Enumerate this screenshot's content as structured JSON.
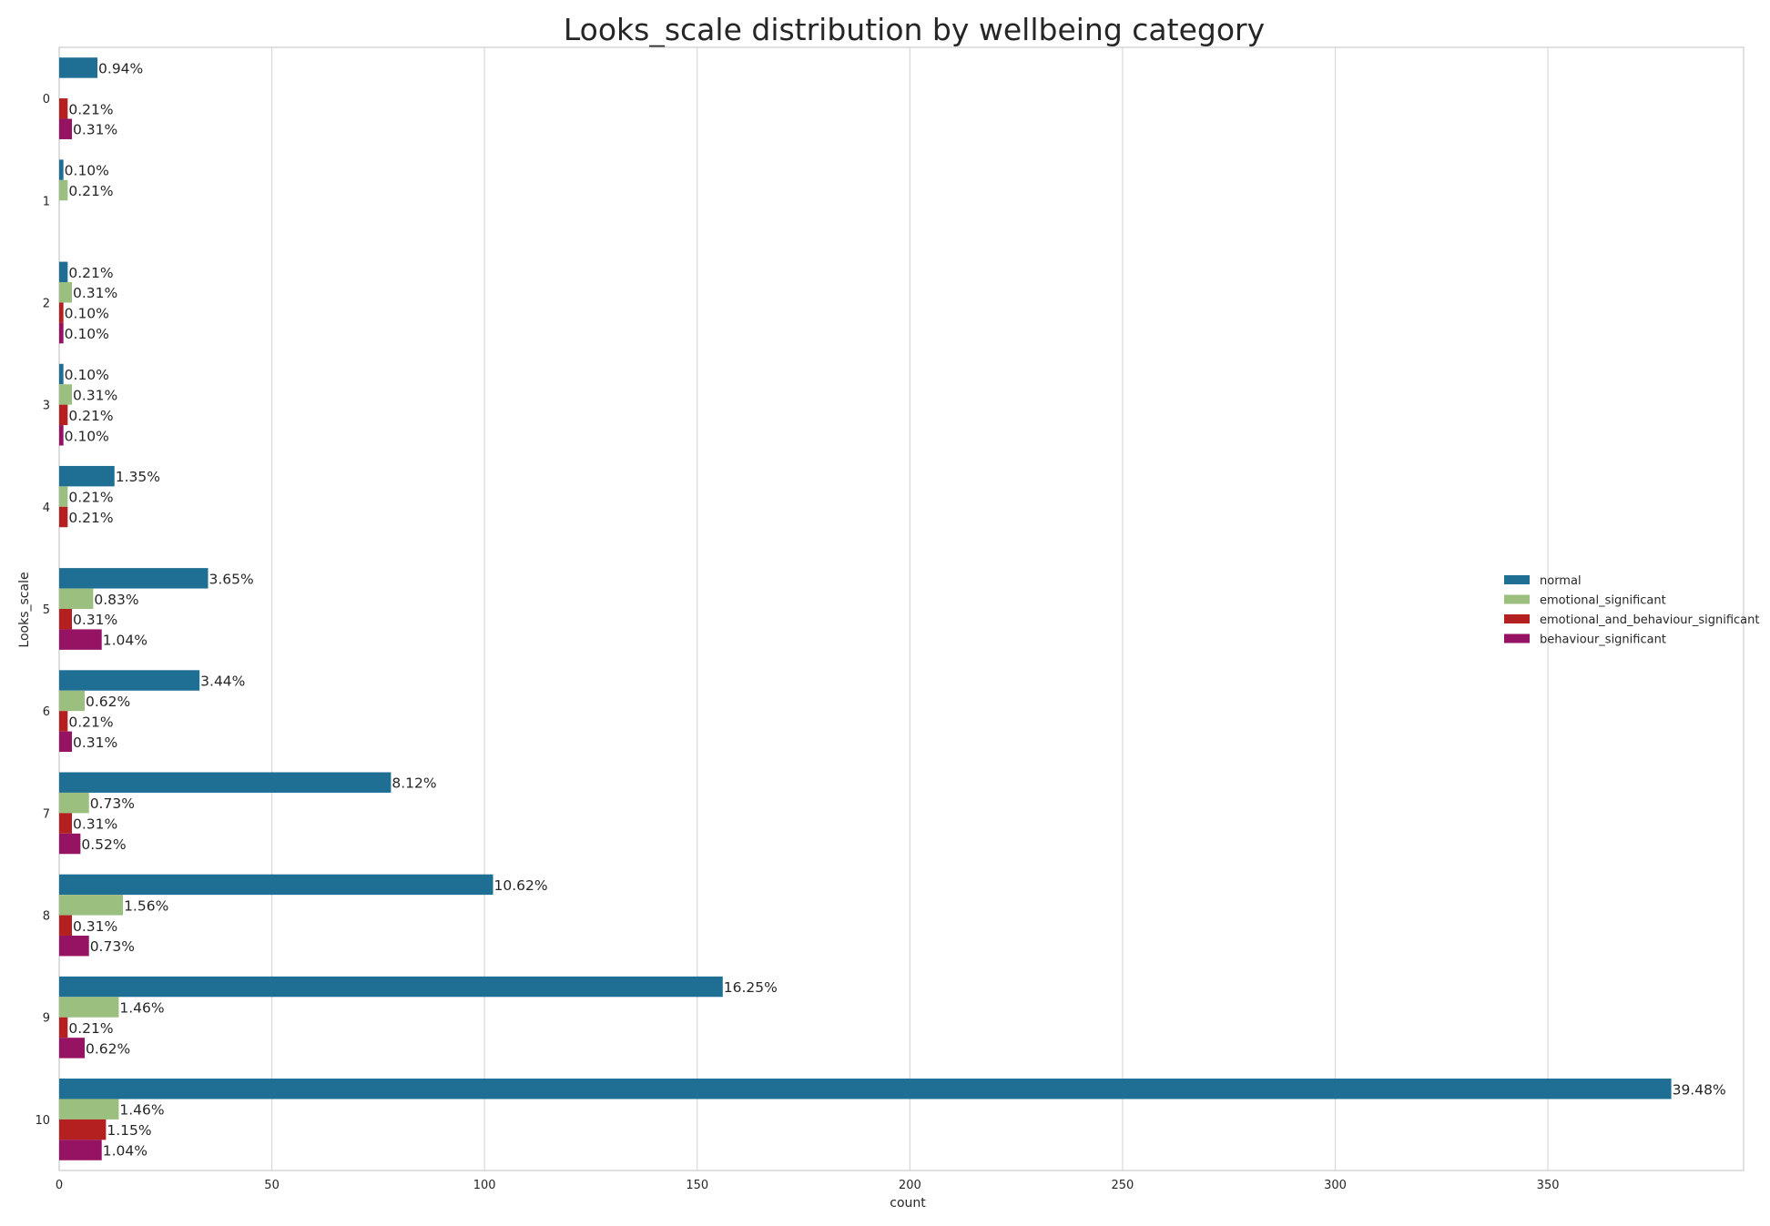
{
  "chart_data": {
    "type": "bar",
    "orientation": "horizontal",
    "title": "Looks_scale distribution by wellbeing category",
    "xlabel": "count",
    "ylabel": "Looks_scale",
    "xlim": [
      0,
      396
    ],
    "xticks": [
      0,
      50,
      100,
      150,
      200,
      250,
      300,
      350
    ],
    "categories": [
      "0",
      "1",
      "2",
      "3",
      "4",
      "5",
      "6",
      "7",
      "8",
      "9",
      "10"
    ],
    "grid": true,
    "legend_position": "right",
    "series": [
      {
        "name": "normal",
        "color": "#1f6e94",
        "values": [
          9,
          1,
          2,
          1,
          13,
          35,
          33,
          78,
          102,
          156,
          379
        ],
        "labels": [
          "0.94%",
          "0.10%",
          "0.21%",
          "0.10%",
          "1.35%",
          "3.65%",
          "3.44%",
          "8.12%",
          "10.62%",
          "16.25%",
          "39.48%"
        ]
      },
      {
        "name": "emotional_significant",
        "color": "#9bbf7f",
        "values": [
          null,
          2,
          3,
          3,
          2,
          8,
          6,
          7,
          15,
          14,
          14
        ],
        "labels": [
          null,
          "0.21%",
          "0.31%",
          "0.31%",
          "0.21%",
          "0.83%",
          "0.62%",
          "0.73%",
          "1.56%",
          "1.46%",
          "1.46%"
        ]
      },
      {
        "name": "emotional_and_behaviour_significant",
        "color": "#b41f1f",
        "values": [
          2,
          null,
          1,
          2,
          2,
          3,
          2,
          3,
          3,
          2,
          11
        ],
        "labels": [
          "0.21%",
          null,
          "0.10%",
          "0.21%",
          "0.21%",
          "0.31%",
          "0.21%",
          "0.31%",
          "0.31%",
          "0.21%",
          "1.15%"
        ]
      },
      {
        "name": "behaviour_significant",
        "color": "#951362",
        "values": [
          3,
          null,
          1,
          1,
          null,
          10,
          3,
          5,
          7,
          6,
          10
        ],
        "labels": [
          "0.31%",
          null,
          "0.10%",
          "0.10%",
          null,
          "1.04%",
          "0.31%",
          "0.52%",
          "0.73%",
          "0.62%",
          "1.04%"
        ]
      }
    ]
  }
}
